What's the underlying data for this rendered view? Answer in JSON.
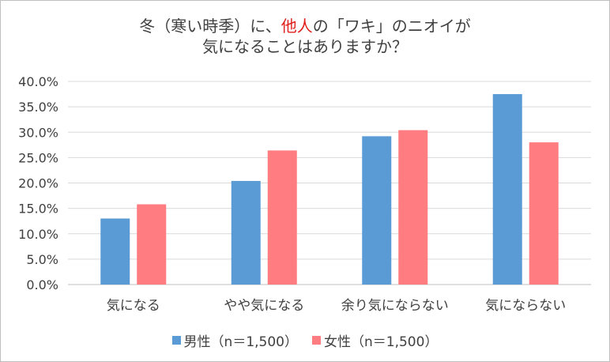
{
  "chart_data": {
    "type": "bar",
    "title_parts": [
      "冬（寒い時季）に、",
      "他人",
      "の「ワキ」のニオイが"
    ],
    "title_line2": "気になることはありますか？",
    "categories": [
      "気になる",
      "やや気になる",
      "余り気にならない",
      "気にならない"
    ],
    "series": [
      {
        "name": "男性（n＝1,500）",
        "color": "#5b9bd5",
        "values": [
          13.0,
          20.4,
          29.2,
          37.5
        ]
      },
      {
        "name": "女性（n＝1,500）",
        "color": "#ff7c80",
        "values": [
          15.8,
          26.4,
          30.4,
          28.0
        ]
      }
    ],
    "ylim": [
      0,
      40
    ],
    "yticks": [
      "0.0%",
      "5.0%",
      "10.0%",
      "15.0%",
      "20.0%",
      "25.0%",
      "30.0%",
      "35.0%",
      "40.0%"
    ],
    "grid": true,
    "legend_position": "bottom",
    "title_highlight_color": "#e0201c"
  }
}
